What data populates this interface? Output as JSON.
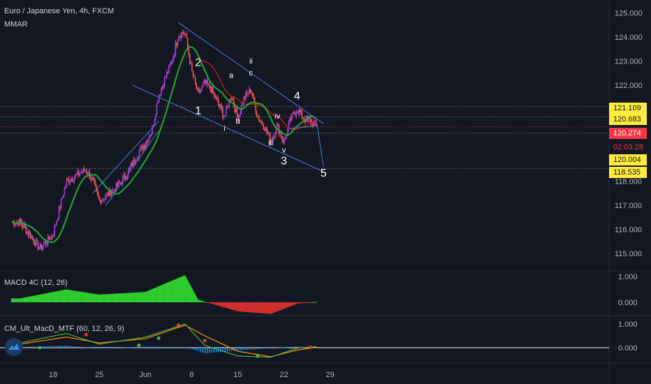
{
  "header": {
    "symbol_title": "Euro / Japanese Yen, 4h, FXCM",
    "indicator": "MMAR"
  },
  "price_tags": {
    "r1": "121.109",
    "r2": "120.683",
    "last": "120.274",
    "timer": "02:03:28",
    "s1": "120.004",
    "s2": "118.535"
  },
  "colors": {
    "background": "#131722",
    "up_candle": "#a23fd6",
    "down_candle": "#ef5350",
    "ma_green": "#22ab30",
    "ma_red": "#b71c1c",
    "trendline": "#4a7fd4",
    "macd_pos": "#2ecc2e",
    "macd_neg": "#d32f2f"
  },
  "chart_data": [
    {
      "type": "candlestick",
      "title": "Euro / Japanese Yen, 4h, FXCM",
      "y_axis": {
        "ticks": [
          "115.000",
          "116.000",
          "117.000",
          "118.000",
          "119.000",
          "120.000",
          "121.000",
          "122.000",
          "123.000",
          "124.000",
          "125.000"
        ],
        "range": [
          114.6,
          125.3
        ]
      },
      "x_axis": {
        "ticks": [
          "18",
          "25",
          "Jun",
          "8",
          "15",
          "22",
          "29"
        ]
      },
      "ohlc_anchor_points": [
        {
          "d": "May 13",
          "close": 116.3
        },
        {
          "d": "May 16",
          "close": 115.2
        },
        {
          "d": "May 18",
          "close": 115.8
        },
        {
          "d": "May 20",
          "close": 118.0
        },
        {
          "d": "May 23",
          "close": 118.5
        },
        {
          "d": "May 24",
          "close": 118.0
        },
        {
          "d": "May 25",
          "close": 117.2
        },
        {
          "d": "May 27",
          "close": 117.6
        },
        {
          "d": "May 29",
          "close": 118.2
        },
        {
          "d": "May 31",
          "close": 119.2
        },
        {
          "d": "Jun 1",
          "close": 119.6
        },
        {
          "d": "Jun 2",
          "close": 120.1
        },
        {
          "d": "Jun 3",
          "close": 121.6
        },
        {
          "d": "Jun 4",
          "close": 122.3
        },
        {
          "d": "Jun 5",
          "close": 123.0
        },
        {
          "d": "Jun 6",
          "close": 124.1
        },
        {
          "d": "Jun 7",
          "close": 124.2
        },
        {
          "d": "Jun 8",
          "close": 122.6
        },
        {
          "d": "Jun 9",
          "close": 121.6
        },
        {
          "d": "Jun 10",
          "close": 122.1
        },
        {
          "d": "Jun 11",
          "close": 121.8
        },
        {
          "d": "Jun 13",
          "close": 120.7
        },
        {
          "d": "Jun 14",
          "close": 121.6
        },
        {
          "d": "Jun 15",
          "close": 120.6
        },
        {
          "d": "Jun 16",
          "close": 121.5
        },
        {
          "d": "Jun 17",
          "close": 121.8
        },
        {
          "d": "Jun 18",
          "close": 120.7
        },
        {
          "d": "Jun 19",
          "close": 120.3
        },
        {
          "d": "Jun 20",
          "close": 119.7
        },
        {
          "d": "Jun 21",
          "close": 120.3
        },
        {
          "d": "Jun 22",
          "close": 119.6
        },
        {
          "d": "Jun 23",
          "close": 120.6
        },
        {
          "d": "Jun 24",
          "close": 121.0
        },
        {
          "d": "Jun 25",
          "close": 120.6
        },
        {
          "d": "Jun 26",
          "close": 120.5
        },
        {
          "d": "Jun 27",
          "close": 120.27
        }
      ],
      "horizontal_levels": [
        121.109,
        120.683,
        120.274,
        120.004,
        118.535
      ],
      "wave_labels": [
        {
          "label": "1",
          "d": "Jun 9",
          "y": 120.8
        },
        {
          "label": "2",
          "d": "Jun 9",
          "y": 122.8
        },
        {
          "label": "a",
          "d": "Jun 14",
          "y": 122.3
        },
        {
          "label": "b",
          "d": "Jun 15",
          "y": 120.4
        },
        {
          "label": "c",
          "d": "Jun 17",
          "y": 122.4
        },
        {
          "label": "ii",
          "d": "Jun 17",
          "y": 122.9
        },
        {
          "label": "i",
          "d": "Jun 13",
          "y": 120.1
        },
        {
          "label": "iii",
          "d": "Jun 20",
          "y": 119.5
        },
        {
          "label": "iv",
          "d": "Jun 21",
          "y": 120.6
        },
        {
          "label": "v",
          "d": "Jun 22",
          "y": 119.2
        },
        {
          "label": "3",
          "d": "Jun 22",
          "y": 118.7
        },
        {
          "label": "4",
          "d": "Jun 24",
          "y": 121.4
        },
        {
          "label": "5",
          "d": "Jun 28",
          "y": 118.2
        }
      ]
    },
    {
      "type": "bar",
      "title": "MACD 4C (12, 26)",
      "y_axis": {
        "ticks": [
          "0.000",
          "1.000"
        ]
      },
      "anchor_values": [
        {
          "d": "May 13",
          "v": 0.15
        },
        {
          "d": "May 20",
          "v": 0.5
        },
        {
          "d": "May 25",
          "v": 0.3
        },
        {
          "d": "Jun 1",
          "v": 0.4
        },
        {
          "d": "Jun 7",
          "v": 1.05
        },
        {
          "d": "Jun 9",
          "v": 0.1
        },
        {
          "d": "Jun 15",
          "v": -0.35
        },
        {
          "d": "Jun 20",
          "v": -0.45
        },
        {
          "d": "Jun 24",
          "v": -0.05
        },
        {
          "d": "Jun 27",
          "v": 0.02
        }
      ]
    },
    {
      "type": "line",
      "title": "CM_Ult_MacD_MTF (60, 12, 26, 9)",
      "y_axis": {
        "ticks": [
          "0.000",
          "1.000"
        ]
      },
      "series": [
        {
          "anchor_values": [
            {
              "d": "May 13",
              "v": 0.2
            },
            {
              "d": "May 20",
              "v": 0.6
            },
            {
              "d": "May 25",
              "v": 0.15
            },
            {
              "d": "Jun 1",
              "v": 0.45
            },
            {
              "d": "Jun 7",
              "v": 1.0
            },
            {
              "d": "Jun 10",
              "v": 0.1
            },
            {
              "d": "Jun 15",
              "v": -0.35
            },
            {
              "d": "Jun 20",
              "v": -0.4
            },
            {
              "d": "Jun 24",
              "v": -0.02
            },
            {
              "d": "Jun 27",
              "v": 0.05
            }
          ]
        },
        {
          "anchor_values": [
            {
              "d": "May 13",
              "v": 0.15
            },
            {
              "d": "May 20",
              "v": 0.45
            },
            {
              "d": "May 25",
              "v": 0.2
            },
            {
              "d": "Jun 1",
              "v": 0.38
            },
            {
              "d": "Jun 7",
              "v": 0.95
            },
            {
              "d": "Jun 10",
              "v": 0.5
            },
            {
              "d": "Jun 15",
              "v": -0.15
            },
            {
              "d": "Jun 20",
              "v": -0.38
            },
            {
              "d": "Jun 24",
              "v": -0.1
            },
            {
              "d": "Jun 27",
              "v": 0.03
            }
          ]
        }
      ]
    }
  ]
}
